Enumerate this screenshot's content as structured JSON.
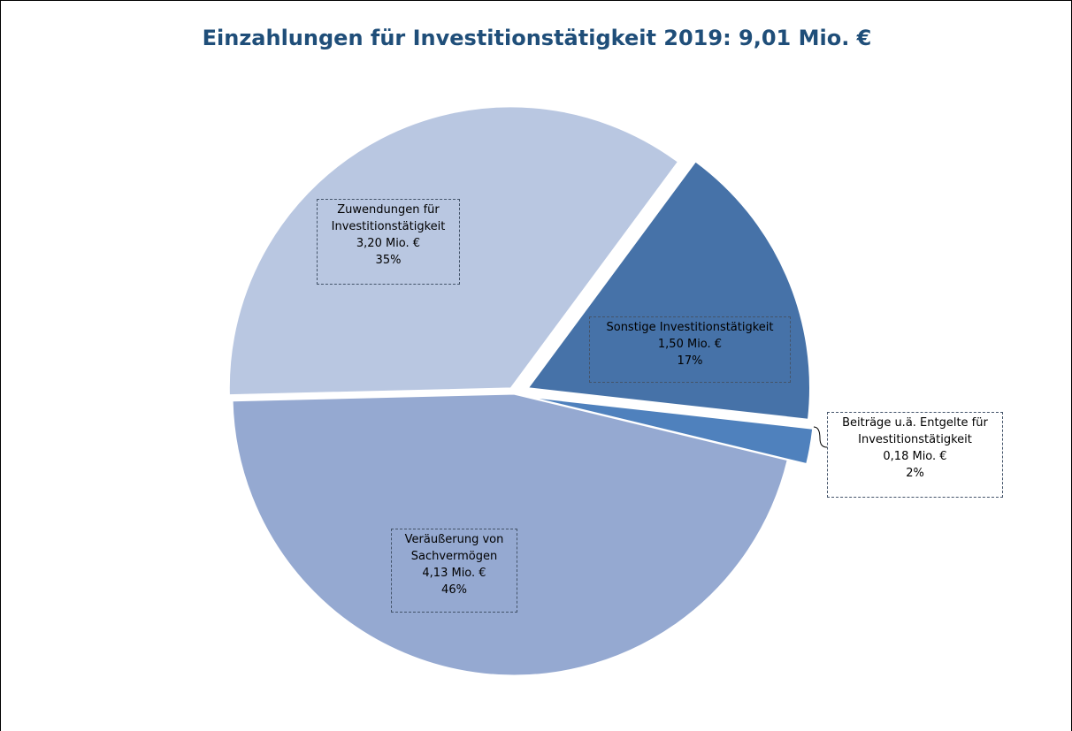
{
  "chart_data": {
    "type": "pie",
    "title": "Einzahlungen für Investitionstätigkeit 2019: 9,01 Mio. €",
    "categories": [
      "Zuwendungen für Investitionstätigkeit",
      "Sonstige Investitionstätigkeit",
      "Beiträge u.ä. Entgelte für Investitionstätigkeit",
      "Veräußerung von Sachvermögen"
    ],
    "values": [
      3.2,
      1.5,
      0.18,
      4.13
    ],
    "value_labels": [
      "3,20 Mio. €",
      "1,50 Mio. €",
      "0,18 Mio. €",
      "4,13 Mio. €"
    ],
    "percent_labels": [
      "35%",
      "17%",
      "2%",
      "46%"
    ],
    "colors": [
      "#b9c7e1",
      "#4672a8",
      "#4f81bd",
      "#95a9d1"
    ]
  }
}
